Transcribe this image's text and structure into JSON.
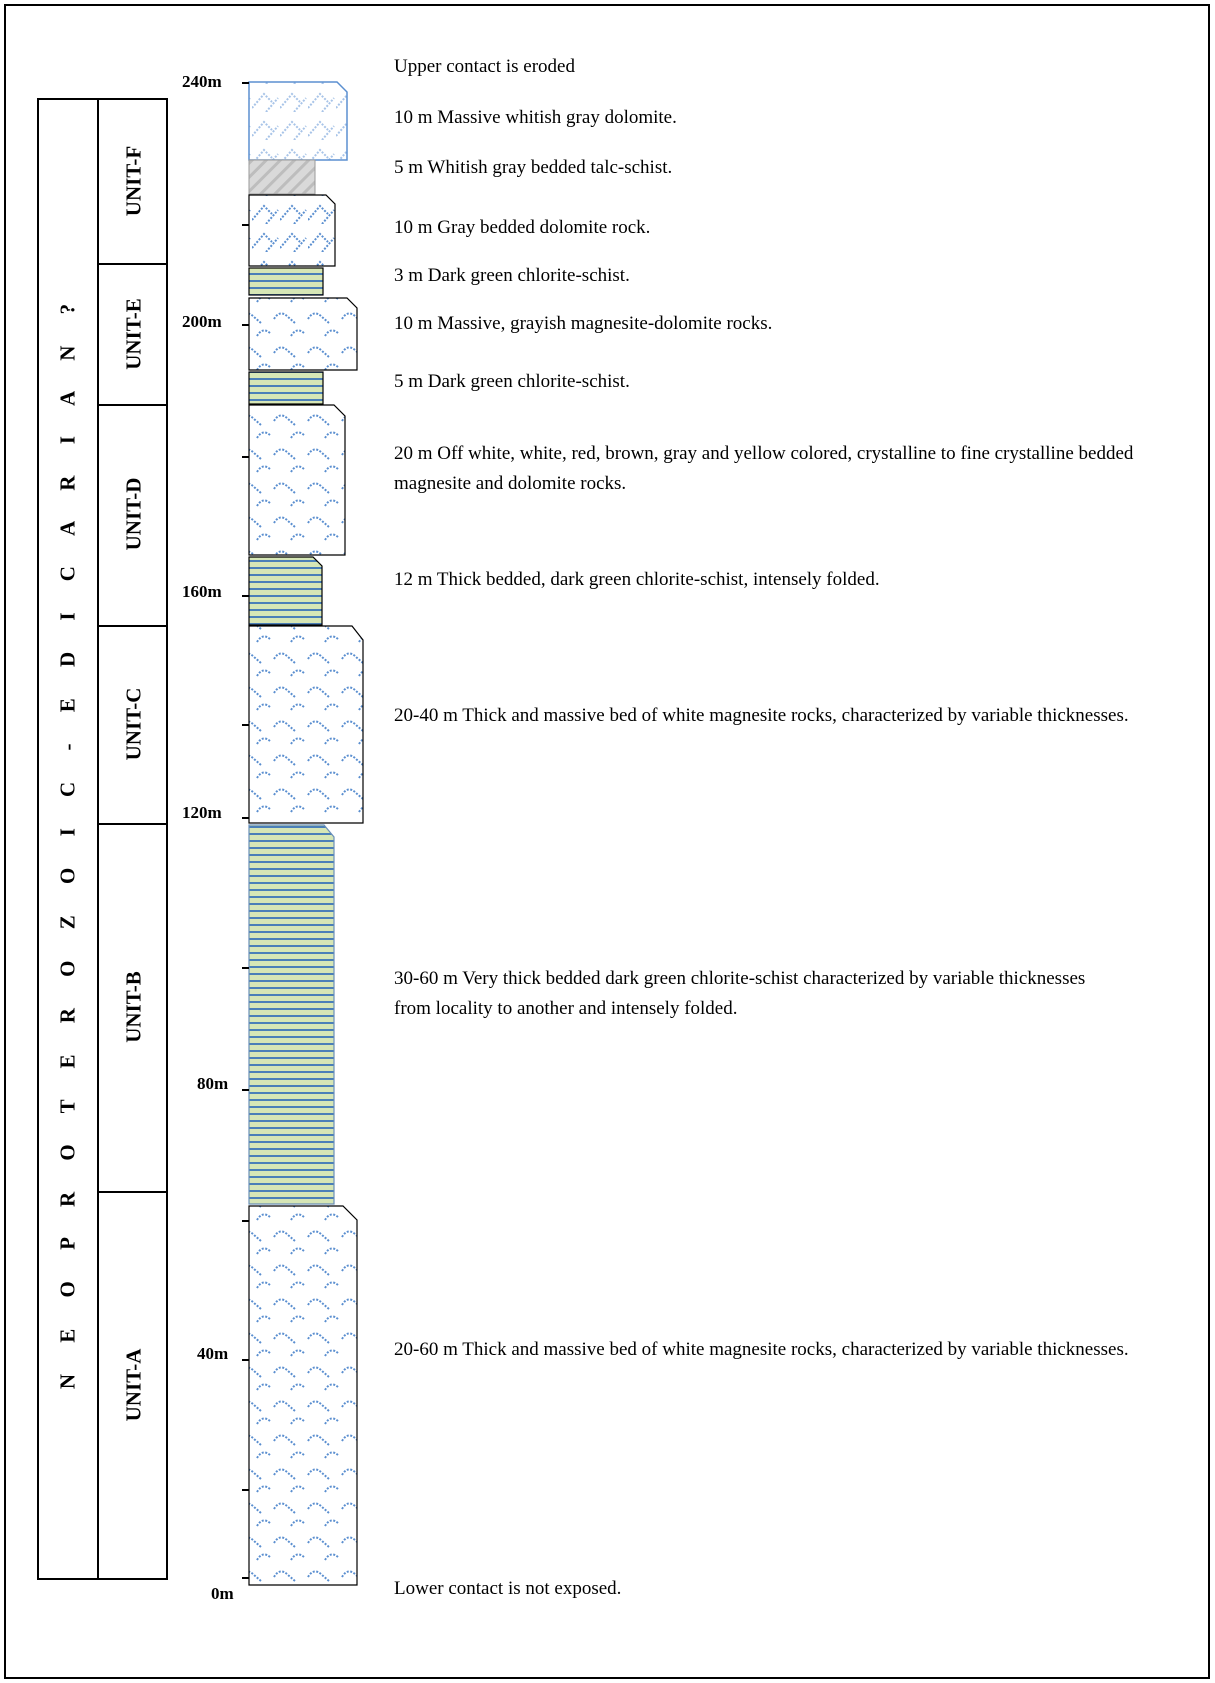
{
  "era_label": "N E O P R O T E R O Z O I C   -   E D I C A R I A N ?",
  "units": [
    {
      "label": "UNIT-F"
    },
    {
      "label": "UNIT-E"
    },
    {
      "label": "UNIT-D"
    },
    {
      "label": "UNIT-C"
    },
    {
      "label": "UNIT-B"
    },
    {
      "label": "UNIT-A"
    }
  ],
  "depth_axis": {
    "ticks": [
      "240m",
      "200m",
      "160m",
      "120m",
      "80m",
      "40m",
      "0m"
    ]
  },
  "descriptions": {
    "top": "Upper contact is eroded",
    "bottom": "Lower contact is not exposed.",
    "layers": [
      "10 m Massive whitish gray dolomite.",
      "5 m Whitish gray bedded talc-schist.",
      "10 m Gray bedded dolomite rock.",
      "3 m Dark green chlorite-schist.",
      "10 m Massive, grayish magnesite-dolomite rocks.",
      "5 m Dark green chlorite-schist.",
      "20 m Off white, white, red, brown, gray and yellow colored, crystalline to fine crystalline bedded magnesite and dolomite rocks.",
      "12 m Thick bedded, dark green chlorite-schist, intensely folded.",
      "20-40 m Thick and massive bed of white magnesite rocks, characterized by variable thicknesses.",
      "30-60 m Very thick bedded dark green chlorite-schist characterized by variable thicknesses from locality to another and intensely folded.",
      "20-60 m Thick and massive bed of white magnesite rocks, characterized by variable thicknesses."
    ]
  },
  "colors": {
    "carbonate_pattern": "#5b8fd0",
    "schist_fill": "#d6e6b6",
    "schist_stripes": "#4a7fb8",
    "talc_fill": "#d9d9d9",
    "outline": "#000000"
  }
}
